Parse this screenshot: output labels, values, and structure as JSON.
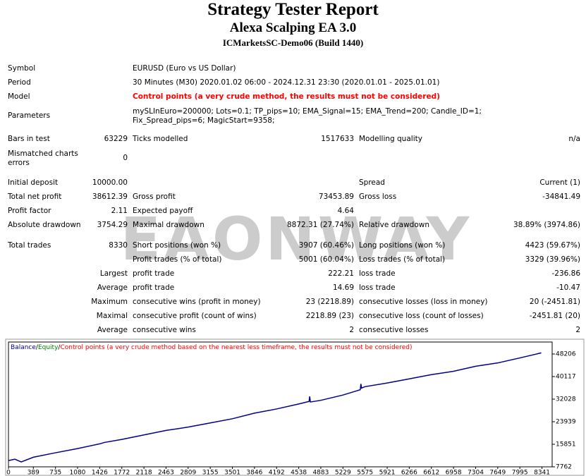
{
  "header": {
    "title": "Strategy Tester Report",
    "subtitle": "Alexa Scalping EA 3.0",
    "server": "ICMarketsSC-Demo06 (Build 1440)"
  },
  "info": [
    {
      "label": "Symbol",
      "value": "EURUSD (Euro vs US Dollar)"
    },
    {
      "label": "Period",
      "value": "30 Minutes (M30) 2020.01.02 06:00 - 2024.12.31 23:30 (2020.01.01 - 2025.01.01)"
    },
    {
      "label": "Model",
      "value": "Control points (a very crude method, the results must not be considered)",
      "color": "#ff0000"
    },
    {
      "label": "Parameters",
      "value": "mySLInEuro=200000; Lots=0.1; TP_pips=10; EMA_Signal=15; EMA_Trend=200; Candle_ID=1; Fix_Spread_pips=6; MagicStart=9358;"
    }
  ],
  "stats": [
    [
      "Bars in test",
      "63229",
      "Ticks modelled",
      "1517633",
      "Modelling quality",
      "n/a"
    ],
    [
      "Mismatched charts errors",
      "0",
      null,
      null,
      null,
      null
    ],
    [
      "Initial deposit",
      "10000.00",
      null,
      null,
      "Spread",
      "Current (1)"
    ],
    [
      "Total net profit",
      "38612.39",
      "Gross profit",
      "73453.89",
      "Gross loss",
      "-34841.49"
    ],
    [
      "Profit factor",
      "2.11",
      "Expected payoff",
      "4.64",
      null,
      null
    ],
    [
      "Absolute drawdown",
      "3754.29",
      "Maximal drawdown",
      "8872.31 (27.74%)",
      "Relative drawdown",
      "38.89% (3974.86)"
    ],
    [
      "Total trades",
      "8330",
      "Short positions (won %)",
      "3907 (60.46%)",
      "Long positions (won %)",
      "4423 (59.67%)"
    ],
    [
      null,
      null,
      "Profit trades (% of total)",
      "5001 (60.04%)",
      "Loss trades (% of total)",
      "3329 (39.96%)"
    ],
    [
      null,
      "Largest",
      "profit trade",
      "222.21",
      "loss trade",
      "-236.86"
    ],
    [
      null,
      "Average",
      "profit trade",
      "14.69",
      "loss trade",
      "-10.47"
    ],
    [
      null,
      "Maximum",
      "consecutive wins (profit in money)",
      "23 (2218.89)",
      "consecutive losses (loss in money)",
      "20 (-2451.81)"
    ],
    [
      null,
      "Maximal",
      "consecutive profit (count of wins)",
      "2218.89 (23)",
      "consecutive loss (count of losses)",
      "-2451.81 (20)"
    ],
    [
      null,
      "Average",
      "consecutive wins",
      "2",
      "consecutive losses",
      "2"
    ]
  ],
  "watermark": "EAONWAY",
  "chart_data": {
    "type": "line",
    "x": [
      0,
      100,
      200,
      389,
      735,
      1080,
      1426,
      1500,
      1772,
      2118,
      2463,
      2809,
      3155,
      3501,
      3846,
      4192,
      4538,
      4700,
      4710,
      4720,
      4883,
      5229,
      5500,
      5510,
      5520,
      5575,
      5921,
      6266,
      6612,
      6958,
      7304,
      7649,
      7995,
      8330
    ],
    "series": [
      {
        "name": "Balance",
        "color": "#00008b",
        "values": [
          10000,
          10500,
          9500,
          11200,
          12800,
          14300,
          16000,
          16500,
          17600,
          19200,
          20800,
          22000,
          23500,
          25000,
          27000,
          28500,
          30300,
          31200,
          33000,
          31000,
          31600,
          33500,
          35400,
          37500,
          36000,
          36500,
          37800,
          39300,
          40800,
          42000,
          43800,
          45000,
          46800,
          48612
        ]
      }
    ],
    "equity_label": "Equity",
    "equity_color": "#008000",
    "control_label": "Control points (a very crude method based on the nearest less timeframe, the results must not be considered)",
    "control_color": "#ff0000",
    "legend_separator": "/",
    "xlim": [
      0,
      8500
    ],
    "ylim": [
      7762,
      52500
    ],
    "xticks": [
      0,
      389,
      735,
      1080,
      1426,
      1772,
      2118,
      2463,
      2809,
      3155,
      3501,
      3846,
      4192,
      4538,
      4883,
      5229,
      5575,
      5921,
      6266,
      6612,
      6958,
      7304,
      7649,
      7995,
      8341
    ],
    "yticks": [
      7762,
      15851,
      23939,
      32028,
      40117,
      48206
    ]
  }
}
